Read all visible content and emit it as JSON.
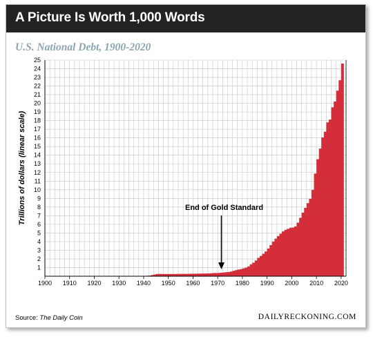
{
  "header": {
    "title": "A Picture Is Worth 1,000 Words"
  },
  "subtitle": "U.S. National Debt, 1900-2020",
  "footer": {
    "source_prefix": "Source:",
    "source_name": "The Daily Coin",
    "brand": "DAILYRECKONING.COM"
  },
  "colors": {
    "bar": "#d42e3a",
    "header_bg": "#232323",
    "subtitle": "#8ca5b4",
    "grid": "#c4c4c4"
  },
  "chart_data": {
    "type": "bar",
    "title": "U.S. National Debt, 1900-2020",
    "xlabel": "",
    "ylabel": "Trillions of dollars (linear scale)",
    "xlim": [
      1900,
      2022
    ],
    "ylim": [
      0,
      25
    ],
    "grid": true,
    "x_ticks": [
      1900,
      1910,
      1920,
      1930,
      1940,
      1950,
      1960,
      1970,
      1980,
      1990,
      2000,
      2010,
      2020
    ],
    "y_ticks": [
      1,
      2,
      3,
      4,
      5,
      6,
      7,
      8,
      9,
      10,
      11,
      12,
      13,
      14,
      15,
      16,
      17,
      18,
      19,
      20,
      21,
      22,
      23,
      24,
      25
    ],
    "annotation": {
      "text": "End of Gold Standard",
      "x": 1971.5
    },
    "series": [
      {
        "x": [
          1900,
          1901,
          1902,
          1903,
          1904,
          1905,
          1906,
          1907,
          1908,
          1909,
          1910,
          1911,
          1912,
          1913,
          1914,
          1915,
          1916,
          1917,
          1918,
          1919,
          1920,
          1921,
          1922,
          1923,
          1924,
          1925,
          1926,
          1927,
          1928,
          1929,
          1930,
          1931,
          1932,
          1933,
          1934,
          1935,
          1936,
          1937,
          1938,
          1939,
          1940,
          1941,
          1942,
          1943,
          1944,
          1945,
          1946,
          1947,
          1948,
          1949,
          1950,
          1951,
          1952,
          1953,
          1954,
          1955,
          1956,
          1957,
          1958,
          1959,
          1960,
          1961,
          1962,
          1963,
          1964,
          1965,
          1966,
          1967,
          1968,
          1969,
          1970,
          1971,
          1972,
          1973,
          1974,
          1975,
          1976,
          1977,
          1978,
          1979,
          1980,
          1981,
          1982,
          1983,
          1984,
          1985,
          1986,
          1987,
          1988,
          1989,
          1990,
          1991,
          1992,
          1993,
          1994,
          1995,
          1996,
          1997,
          1998,
          1999,
          2000,
          2001,
          2002,
          2003,
          2004,
          2005,
          2006,
          2007,
          2008,
          2009,
          2010,
          2011,
          2012,
          2013,
          2014,
          2015,
          2016,
          2017,
          2018,
          2019,
          2020
        ],
        "values": [
          0.001,
          0.001,
          0.001,
          0.001,
          0.001,
          0.001,
          0.001,
          0.001,
          0.001,
          0.001,
          0.001,
          0.001,
          0.001,
          0.001,
          0.001,
          0.001,
          0.001,
          0.003,
          0.012,
          0.025,
          0.024,
          0.024,
          0.023,
          0.022,
          0.021,
          0.021,
          0.02,
          0.018,
          0.018,
          0.017,
          0.016,
          0.017,
          0.019,
          0.023,
          0.027,
          0.029,
          0.034,
          0.036,
          0.037,
          0.04,
          0.043,
          0.049,
          0.072,
          0.137,
          0.201,
          0.259,
          0.269,
          0.258,
          0.252,
          0.253,
          0.257,
          0.255,
          0.259,
          0.266,
          0.271,
          0.274,
          0.273,
          0.272,
          0.28,
          0.287,
          0.291,
          0.293,
          0.303,
          0.31,
          0.316,
          0.322,
          0.328,
          0.341,
          0.37,
          0.366,
          0.381,
          0.408,
          0.436,
          0.466,
          0.484,
          0.542,
          0.629,
          0.706,
          0.777,
          0.829,
          0.909,
          0.995,
          1.137,
          1.372,
          1.565,
          1.817,
          2.121,
          2.346,
          2.601,
          2.868,
          3.206,
          3.598,
          4.002,
          4.351,
          4.643,
          4.921,
          5.181,
          5.369,
          5.478,
          5.606,
          5.629,
          5.77,
          6.198,
          6.76,
          7.355,
          7.905,
          8.451,
          8.951,
          9.986,
          11.876,
          13.529,
          14.764,
          16.051,
          16.719,
          17.794,
          18.12,
          19.539,
          20.206,
          21.462,
          22.669,
          24.6
        ]
      }
    ]
  }
}
